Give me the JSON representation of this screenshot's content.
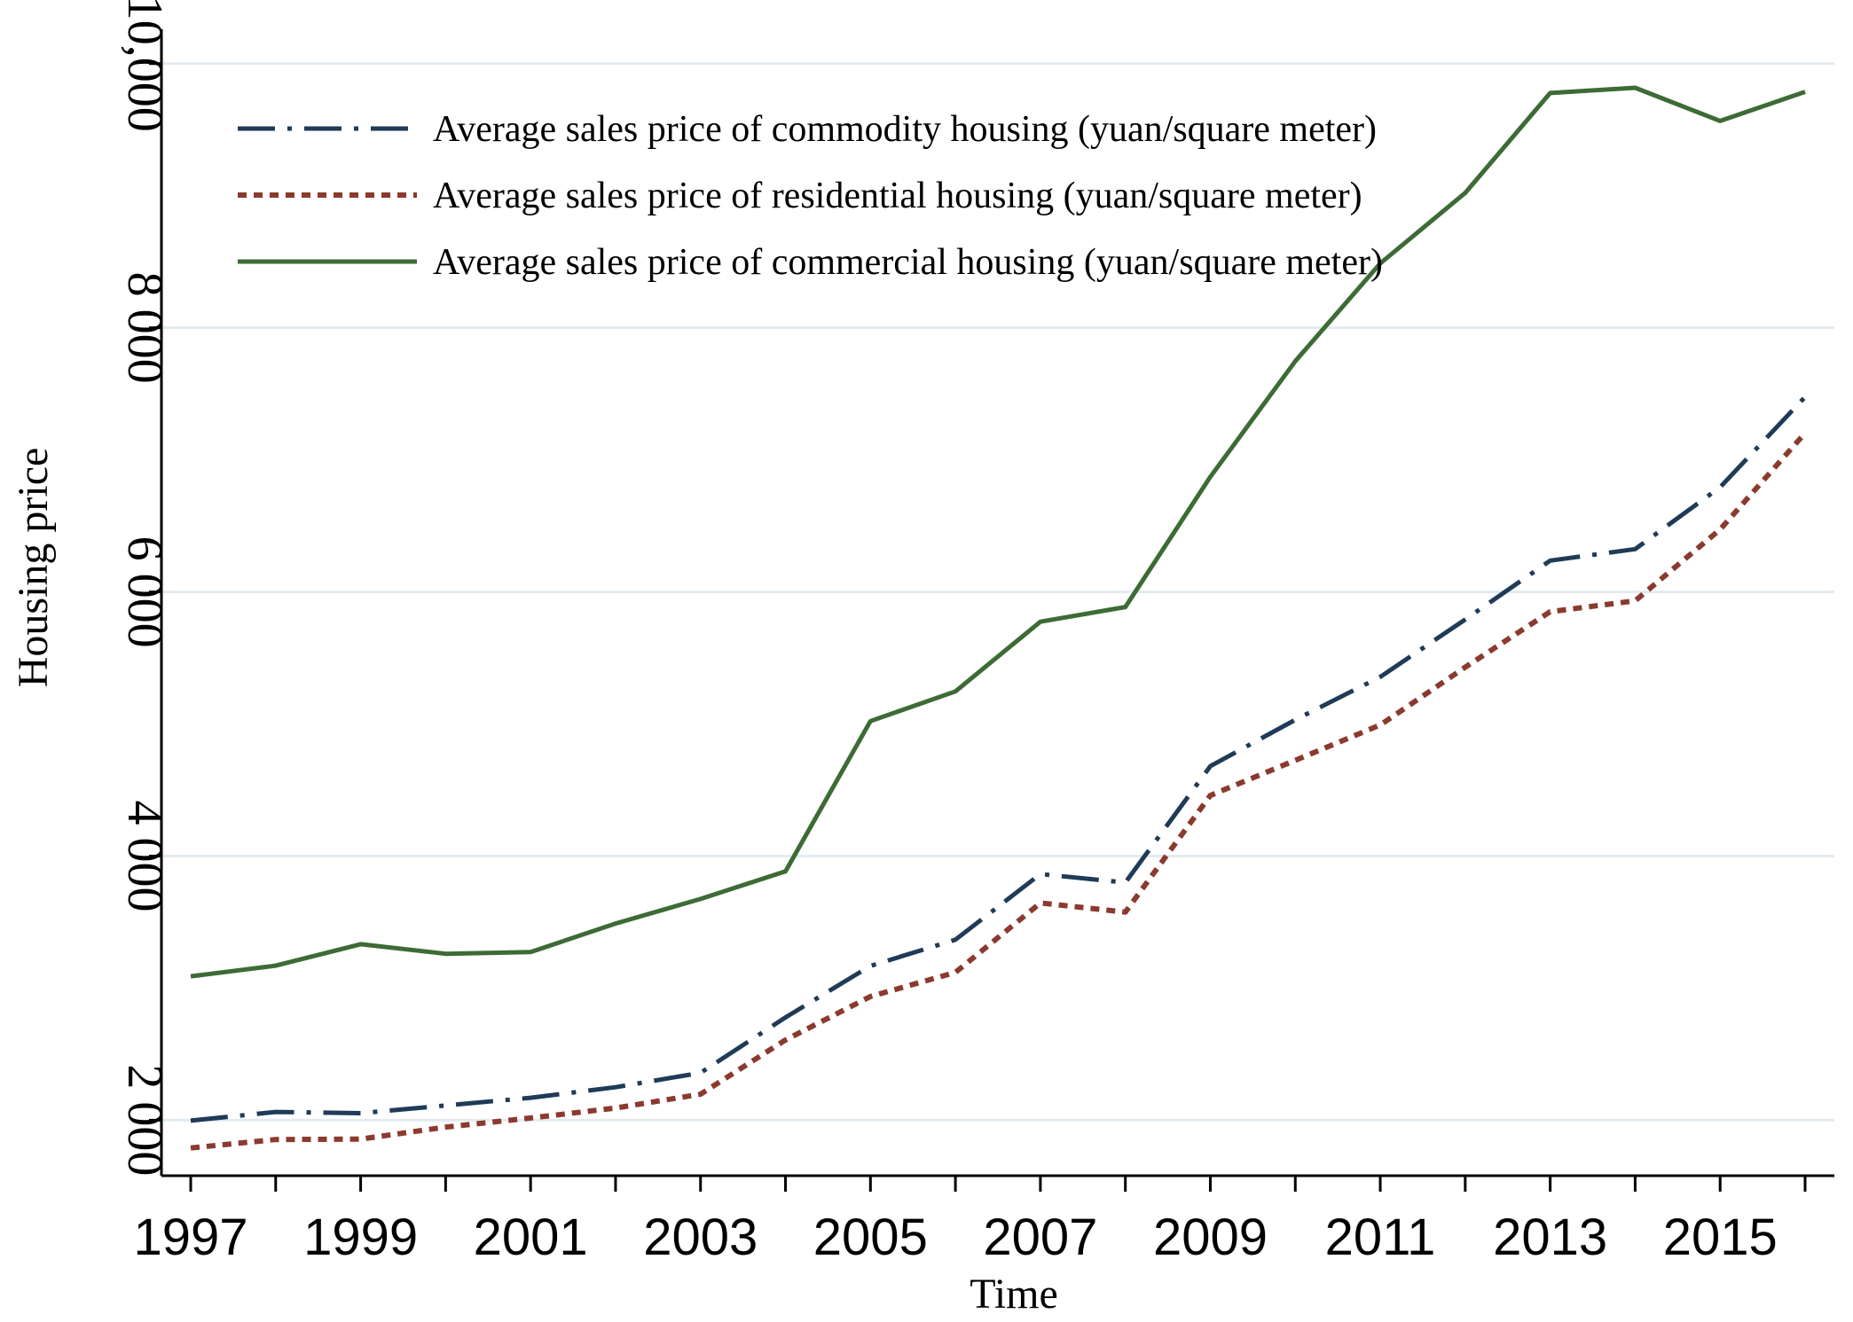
{
  "chart_data": {
    "type": "line",
    "title": "",
    "xlabel": "Time",
    "ylabel": "Housing price",
    "x": [
      1997,
      1998,
      1999,
      2000,
      2001,
      2002,
      2003,
      2004,
      2005,
      2006,
      2007,
      2008,
      2009,
      2010,
      2011,
      2012,
      2013,
      2014,
      2015,
      2016
    ],
    "x_ticks": [
      "1997",
      "1999",
      "2001",
      "2003",
      "2005",
      "2007",
      "2009",
      "2011",
      "2013",
      "2015"
    ],
    "y_ticks": [
      "2 000",
      "4 000",
      "6 000",
      "8 000",
      "10,000"
    ],
    "y_tick_values": [
      2000,
      4000,
      6000,
      8000,
      10000
    ],
    "xlim": [
      1997,
      2016
    ],
    "ylim": [
      1580,
      10260
    ],
    "grid": true,
    "legend_position": "top-left",
    "series": [
      {
        "name": "Average sales price of commodity housing (yuan/square meter)",
        "color": "#1f3b57",
        "style": "dash-dot",
        "values": [
          1997,
          2063,
          2053,
          2112,
          2170,
          2250,
          2359,
          2778,
          3168,
          3367,
          3864,
          3800,
          4681,
          5032,
          5357,
          5791,
          6237,
          6324,
          6793,
          7476
        ]
      },
      {
        "name": "Average sales price of residential housing (yuan/square meter)",
        "color": "#8b3a2f",
        "style": "dotted",
        "values": [
          1790,
          1854,
          1857,
          1948,
          2017,
          2092,
          2197,
          2608,
          2937,
          3119,
          3645,
          3576,
          4459,
          4725,
          4993,
          5430,
          5850,
          5933,
          6473,
          7203
        ]
      },
      {
        "name": "Average sales price of commercial housing (yuan/square meter)",
        "color": "#3d6b35",
        "style": "solid",
        "values": [
          3090,
          3170,
          3333,
          3260,
          3273,
          3489,
          3675,
          3884,
          5022,
          5247,
          5774,
          5886,
          6871,
          7747,
          8488,
          9021,
          9777,
          9817,
          9566,
          9786
        ]
      }
    ]
  }
}
